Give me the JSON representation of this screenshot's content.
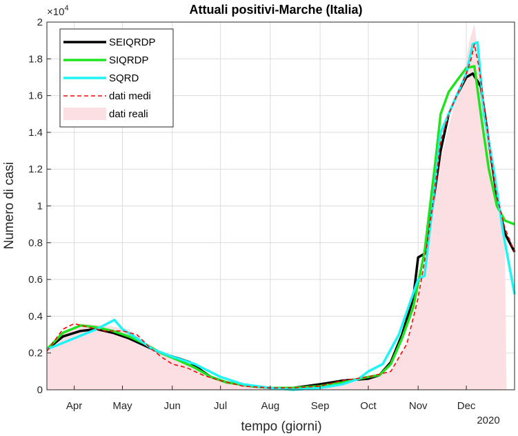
{
  "chart_data": {
    "type": "line",
    "title": "Attuali positivi-Marche (Italia)",
    "xlabel": "tempo (giorni)",
    "ylabel": "Numero di casi",
    "y_exponent_label": "×10",
    "y_exponent_power": "4",
    "year_label": "2020",
    "x_domain": [
      "2020-03-15",
      "2020-12-31"
    ],
    "ylim": [
      0,
      2
    ],
    "grid": true,
    "legend_position": "top-left",
    "x_ticks": [
      {
        "label": "Apr",
        "date": "2020-04-01"
      },
      {
        "label": "May",
        "date": "2020-05-01"
      },
      {
        "label": "Jun",
        "date": "2020-06-01"
      },
      {
        "label": "Jul",
        "date": "2020-07-01"
      },
      {
        "label": "Aug",
        "date": "2020-08-01"
      },
      {
        "label": "Sep",
        "date": "2020-09-01"
      },
      {
        "label": "Oct",
        "date": "2020-10-01"
      },
      {
        "label": "Nov",
        "date": "2020-11-01"
      },
      {
        "label": "Dec",
        "date": "2020-12-01"
      }
    ],
    "y_ticks": [
      "0",
      "0.2",
      "0.4",
      "0.6",
      "0.8",
      "1",
      "1.2",
      "1.4",
      "1.6",
      "1.8",
      "2"
    ],
    "series": [
      {
        "name": "dati reali",
        "kind": "area",
        "color": "#fcdfe3",
        "x": [
          "2020-03-15",
          "2020-03-25",
          "2020-04-05",
          "2020-04-20",
          "2020-05-05",
          "2020-05-20",
          "2020-06-05",
          "2020-06-20",
          "2020-07-05",
          "2020-07-20",
          "2020-08-05",
          "2020-08-20",
          "2020-09-05",
          "2020-09-20",
          "2020-10-05",
          "2020-10-15",
          "2020-10-25",
          "2020-11-01",
          "2020-11-08",
          "2020-11-15",
          "2020-11-22",
          "2020-11-29",
          "2020-12-03",
          "2020-12-06",
          "2020-12-10",
          "2020-12-15",
          "2020-12-20",
          "2020-12-25",
          "2020-12-26"
        ],
        "y": [
          0.21,
          0.31,
          0.36,
          0.35,
          0.33,
          0.22,
          0.16,
          0.09,
          0.04,
          0.02,
          0.01,
          0.01,
          0.02,
          0.04,
          0.07,
          0.1,
          0.25,
          0.5,
          0.85,
          1.25,
          1.5,
          1.7,
          1.9,
          1.99,
          1.7,
          1.3,
          1.0,
          0.8,
          0.0
        ]
      },
      {
        "name": "SEIQRDP",
        "kind": "line",
        "color": "#000000",
        "x": [
          "2020-03-15",
          "2020-03-25",
          "2020-04-05",
          "2020-04-15",
          "2020-04-25",
          "2020-05-05",
          "2020-05-15",
          "2020-05-25",
          "2020-06-05",
          "2020-06-12",
          "2020-06-15",
          "2020-06-25",
          "2020-07-05",
          "2020-07-20",
          "2020-08-01",
          "2020-08-15",
          "2020-09-01",
          "2020-09-15",
          "2020-10-01",
          "2020-10-08",
          "2020-10-15",
          "2020-10-22",
          "2020-10-29",
          "2020-11-01",
          "2020-11-05",
          "2020-11-10",
          "2020-11-15",
          "2020-11-20",
          "2020-11-25",
          "2020-12-01",
          "2020-12-05",
          "2020-12-10",
          "2020-12-15",
          "2020-12-20",
          "2020-12-25",
          "2020-12-31"
        ],
        "y": [
          0.22,
          0.29,
          0.32,
          0.33,
          0.31,
          0.28,
          0.24,
          0.2,
          0.17,
          0.15,
          0.13,
          0.07,
          0.04,
          0.02,
          0.01,
          0.01,
          0.03,
          0.05,
          0.06,
          0.08,
          0.15,
          0.3,
          0.5,
          0.72,
          0.74,
          1.0,
          1.3,
          1.5,
          1.6,
          1.7,
          1.72,
          1.65,
          1.35,
          1.05,
          0.85,
          0.75
        ]
      },
      {
        "name": "SIQRDP",
        "kind": "line",
        "color": "#1ee31e",
        "x": [
          "2020-03-15",
          "2020-03-25",
          "2020-04-05",
          "2020-04-15",
          "2020-04-25",
          "2020-05-05",
          "2020-05-15",
          "2020-05-25",
          "2020-06-05",
          "2020-06-15",
          "2020-06-25",
          "2020-07-05",
          "2020-07-20",
          "2020-08-01",
          "2020-08-15",
          "2020-09-01",
          "2020-09-15",
          "2020-10-01",
          "2020-10-08",
          "2020-10-15",
          "2020-10-22",
          "2020-10-29",
          "2020-11-05",
          "2020-11-12",
          "2020-11-15",
          "2020-11-20",
          "2020-11-25",
          "2020-12-01",
          "2020-12-06",
          "2020-12-10",
          "2020-12-15",
          "2020-12-20",
          "2020-12-25",
          "2020-12-31"
        ],
        "y": [
          0.22,
          0.31,
          0.35,
          0.34,
          0.32,
          0.29,
          0.25,
          0.2,
          0.16,
          0.12,
          0.07,
          0.04,
          0.02,
          0.01,
          0.01,
          0.02,
          0.04,
          0.07,
          0.08,
          0.14,
          0.28,
          0.45,
          0.75,
          1.26,
          1.5,
          1.62,
          1.68,
          1.75,
          1.76,
          1.5,
          1.2,
          1.0,
          0.92,
          0.9
        ]
      },
      {
        "name": "SQRD",
        "kind": "line",
        "color": "#1ef4f4",
        "x": [
          "2020-03-15",
          "2020-04-01",
          "2020-04-15",
          "2020-04-26",
          "2020-05-01",
          "2020-05-10",
          "2020-05-20",
          "2020-06-01",
          "2020-06-15",
          "2020-07-01",
          "2020-07-15",
          "2020-08-01",
          "2020-08-15",
          "2020-09-01",
          "2020-09-15",
          "2020-09-25",
          "2020-10-01",
          "2020-10-10",
          "2020-10-20",
          "2020-11-01",
          "2020-11-05",
          "2020-11-10",
          "2020-11-15",
          "2020-11-20",
          "2020-11-25",
          "2020-12-01",
          "2020-12-05",
          "2020-12-08",
          "2020-12-12",
          "2020-12-18",
          "2020-12-24",
          "2020-12-31"
        ],
        "y": [
          0.22,
          0.28,
          0.33,
          0.38,
          0.33,
          0.28,
          0.22,
          0.18,
          0.14,
          0.07,
          0.03,
          0.01,
          0.0,
          0.01,
          0.03,
          0.06,
          0.1,
          0.14,
          0.3,
          0.6,
          0.62,
          1.0,
          1.4,
          1.5,
          1.6,
          1.72,
          1.88,
          1.89,
          1.5,
          1.2,
          0.85,
          0.52
        ]
      },
      {
        "name": "dati medi",
        "kind": "dashed",
        "color": "#ff0000",
        "x": [
          "2020-03-15",
          "2020-03-25",
          "2020-04-01",
          "2020-04-10",
          "2020-04-20",
          "2020-05-01",
          "2020-05-10",
          "2020-05-18",
          "2020-05-25",
          "2020-06-01",
          "2020-06-10",
          "2020-06-20",
          "2020-07-01",
          "2020-07-15",
          "2020-08-01",
          "2020-08-15",
          "2020-09-01",
          "2020-09-15",
          "2020-10-01",
          "2020-10-15",
          "2020-10-25",
          "2020-11-01",
          "2020-11-05",
          "2020-11-10",
          "2020-11-15",
          "2020-11-20",
          "2020-11-25",
          "2020-12-01",
          "2020-12-04",
          "2020-12-06",
          "2020-12-09",
          "2020-12-15",
          "2020-12-20",
          "2020-12-25",
          "2020-12-31"
        ],
        "y": [
          0.21,
          0.33,
          0.36,
          0.34,
          0.32,
          0.32,
          0.3,
          0.23,
          0.18,
          0.14,
          0.12,
          0.08,
          0.05,
          0.02,
          0.01,
          0.01,
          0.02,
          0.05,
          0.07,
          0.1,
          0.25,
          0.5,
          0.7,
          1.0,
          1.35,
          1.5,
          1.6,
          1.72,
          1.8,
          1.88,
          1.75,
          1.35,
          1.05,
          0.88,
          0.75
        ]
      }
    ]
  }
}
